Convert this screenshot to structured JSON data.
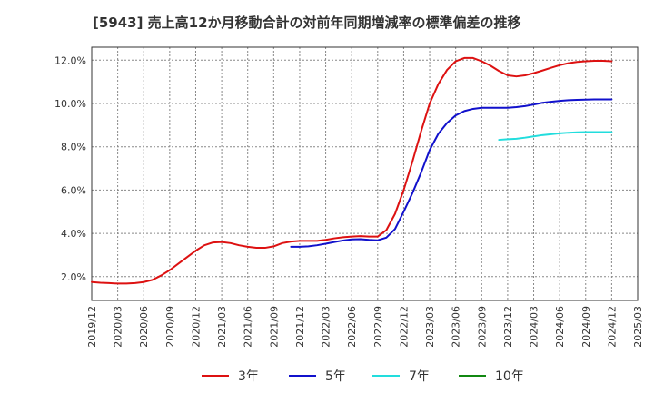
{
  "chart_data": {
    "type": "line",
    "title": "[5943]  売上高12か月移動合計の対前年同期増減率の標準偏差の推移",
    "xlabel": "",
    "ylabel": "",
    "x_ticks": [
      "2019/12",
      "2020/03",
      "2020/06",
      "2020/09",
      "2020/12",
      "2021/03",
      "2021/06",
      "2021/09",
      "2021/12",
      "2022/03",
      "2022/06",
      "2022/09",
      "2022/12",
      "2023/03",
      "2023/06",
      "2023/09",
      "2023/12",
      "2024/03",
      "2024/06",
      "2024/09",
      "2024/12",
      "2025/03"
    ],
    "y_ticks": [
      "2.0%",
      "4.0%",
      "6.0%",
      "8.0%",
      "10.0%",
      "12.0%"
    ],
    "y_tick_values": [
      2,
      4,
      6,
      8,
      10,
      12
    ],
    "ylim": [
      0.9,
      12.6
    ],
    "grid": true,
    "legend_position": "bottom",
    "series": [
      {
        "name": "3年",
        "color": "#dd1111",
        "points": [
          [
            "2019/12",
            1.75
          ],
          [
            "2020/01",
            1.72
          ],
          [
            "2020/02",
            1.7
          ],
          [
            "2020/03",
            1.68
          ],
          [
            "2020/04",
            1.68
          ],
          [
            "2020/05",
            1.7
          ],
          [
            "2020/06",
            1.75
          ],
          [
            "2020/07",
            1.85
          ],
          [
            "2020/08",
            2.05
          ],
          [
            "2020/09",
            2.3
          ],
          [
            "2020/10",
            2.6
          ],
          [
            "2020/11",
            2.9
          ],
          [
            "2020/12",
            3.2
          ],
          [
            "2021/01",
            3.45
          ],
          [
            "2021/02",
            3.58
          ],
          [
            "2021/03",
            3.6
          ],
          [
            "2021/04",
            3.55
          ],
          [
            "2021/05",
            3.45
          ],
          [
            "2021/06",
            3.38
          ],
          [
            "2021/07",
            3.33
          ],
          [
            "2021/08",
            3.33
          ],
          [
            "2021/09",
            3.4
          ],
          [
            "2021/10",
            3.55
          ],
          [
            "2021/11",
            3.62
          ],
          [
            "2021/12",
            3.65
          ],
          [
            "2022/01",
            3.65
          ],
          [
            "2022/02",
            3.65
          ],
          [
            "2022/03",
            3.7
          ],
          [
            "2022/04",
            3.77
          ],
          [
            "2022/05",
            3.82
          ],
          [
            "2022/06",
            3.85
          ],
          [
            "2022/07",
            3.87
          ],
          [
            "2022/08",
            3.85
          ],
          [
            "2022/09",
            3.85
          ],
          [
            "2022/10",
            4.15
          ],
          [
            "2022/11",
            4.9
          ],
          [
            "2022/12",
            6.0
          ],
          [
            "2023/01",
            7.3
          ],
          [
            "2023/02",
            8.7
          ],
          [
            "2023/03",
            10.0
          ],
          [
            "2023/04",
            10.9
          ],
          [
            "2023/05",
            11.55
          ],
          [
            "2023/06",
            11.95
          ],
          [
            "2023/07",
            12.1
          ],
          [
            "2023/08",
            12.1
          ],
          [
            "2023/09",
            11.95
          ],
          [
            "2023/10",
            11.75
          ],
          [
            "2023/11",
            11.5
          ],
          [
            "2023/12",
            11.3
          ],
          [
            "2024/01",
            11.25
          ],
          [
            "2024/02",
            11.3
          ],
          [
            "2024/03",
            11.4
          ],
          [
            "2024/04",
            11.52
          ],
          [
            "2024/05",
            11.65
          ],
          [
            "2024/06",
            11.77
          ],
          [
            "2024/07",
            11.86
          ],
          [
            "2024/08",
            11.92
          ],
          [
            "2024/09",
            11.95
          ],
          [
            "2024/10",
            11.97
          ],
          [
            "2024/11",
            11.97
          ],
          [
            "2024/12",
            11.95
          ]
        ]
      },
      {
        "name": "5年",
        "color": "#1111cc",
        "points": [
          [
            "2021/11",
            3.38
          ],
          [
            "2021/12",
            3.38
          ],
          [
            "2022/01",
            3.4
          ],
          [
            "2022/02",
            3.45
          ],
          [
            "2022/03",
            3.52
          ],
          [
            "2022/04",
            3.6
          ],
          [
            "2022/05",
            3.67
          ],
          [
            "2022/06",
            3.72
          ],
          [
            "2022/07",
            3.73
          ],
          [
            "2022/08",
            3.7
          ],
          [
            "2022/09",
            3.68
          ],
          [
            "2022/10",
            3.8
          ],
          [
            "2022/11",
            4.2
          ],
          [
            "2022/12",
            5.0
          ],
          [
            "2023/01",
            5.85
          ],
          [
            "2023/02",
            6.8
          ],
          [
            "2023/03",
            7.85
          ],
          [
            "2023/04",
            8.6
          ],
          [
            "2023/05",
            9.1
          ],
          [
            "2023/06",
            9.45
          ],
          [
            "2023/07",
            9.65
          ],
          [
            "2023/08",
            9.75
          ],
          [
            "2023/09",
            9.8
          ],
          [
            "2023/10",
            9.8
          ],
          [
            "2023/11",
            9.8
          ],
          [
            "2023/12",
            9.8
          ],
          [
            "2024/01",
            9.83
          ],
          [
            "2024/02",
            9.88
          ],
          [
            "2024/03",
            9.95
          ],
          [
            "2024/04",
            10.03
          ],
          [
            "2024/05",
            10.08
          ],
          [
            "2024/06",
            10.12
          ],
          [
            "2024/07",
            10.15
          ],
          [
            "2024/08",
            10.17
          ],
          [
            "2024/09",
            10.18
          ],
          [
            "2024/10",
            10.19
          ],
          [
            "2024/11",
            10.19
          ],
          [
            "2024/12",
            10.19
          ]
        ]
      },
      {
        "name": "7年",
        "color": "#22dddd",
        "points": [
          [
            "2023/11",
            8.32
          ],
          [
            "2023/12",
            8.35
          ],
          [
            "2024/01",
            8.37
          ],
          [
            "2024/02",
            8.42
          ],
          [
            "2024/03",
            8.48
          ],
          [
            "2024/04",
            8.54
          ],
          [
            "2024/05",
            8.58
          ],
          [
            "2024/06",
            8.62
          ],
          [
            "2024/07",
            8.65
          ],
          [
            "2024/08",
            8.67
          ],
          [
            "2024/09",
            8.68
          ],
          [
            "2024/10",
            8.68
          ],
          [
            "2024/11",
            8.68
          ],
          [
            "2024/12",
            8.68
          ]
        ]
      },
      {
        "name": "10年",
        "color": "#118811",
        "points": []
      }
    ]
  }
}
